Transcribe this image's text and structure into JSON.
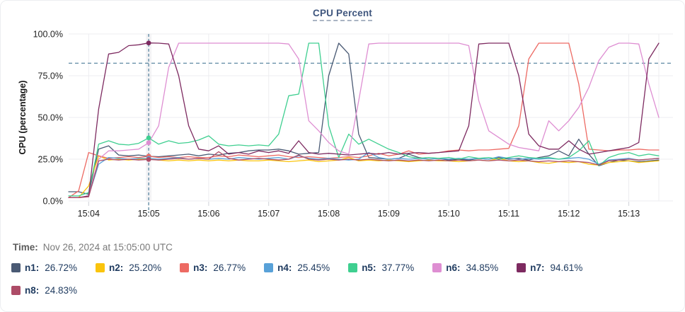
{
  "chart_data": {
    "type": "line",
    "title": "CPU Percent",
    "ylabel": "CPU (percentage)",
    "ylim": [
      0,
      100
    ],
    "grid": "on",
    "legend_position": "bottom",
    "x_start": "15:03:40",
    "x_end": "15:13:30",
    "x_step_seconds": 10,
    "y_ticks": [
      {
        "value": 0,
        "label": "0.0%"
      },
      {
        "value": 25,
        "label": "25.0%"
      },
      {
        "value": 50,
        "label": "50.0%"
      },
      {
        "value": 75,
        "label": "75.0%"
      },
      {
        "value": 100,
        "label": "100.0%"
      }
    ],
    "x_ticks": [
      {
        "t": 20,
        "label": "15:04"
      },
      {
        "t": 80,
        "label": "15:05"
      },
      {
        "t": 140,
        "label": "15:06"
      },
      {
        "t": 200,
        "label": "15:07"
      },
      {
        "t": 260,
        "label": "15:08"
      },
      {
        "t": 320,
        "label": "15:09"
      },
      {
        "t": 380,
        "label": "15:10"
      },
      {
        "t": 440,
        "label": "15:11"
      },
      {
        "t": 500,
        "label": "15:12"
      },
      {
        "t": 560,
        "label": "15:13"
      }
    ],
    "threshold_line": 82.5,
    "crosshair": {
      "t": 80,
      "time": "15:05:00",
      "values": {
        "n1": 26.72,
        "n2": 25.2,
        "n3": 26.77,
        "n4": 25.45,
        "n5": 37.77,
        "n6": 34.85,
        "n7": 94.61,
        "n8": 24.83
      }
    },
    "layout": {
      "grid_color": "#ededf0",
      "tick_color": "#cfd2d8",
      "axis_text_color": "#222222",
      "guide_color": "#4d7d99",
      "crosshair_band_color": "#f3f3f5"
    },
    "series": [
      {
        "name": "n1",
        "color": "#4a5a74",
        "values": [
          5.5,
          5.5,
          4,
          31,
          33,
          27.5,
          27,
          27.5,
          26.72,
          26.5,
          27,
          27.5,
          28,
          27,
          28,
          27.5,
          28.5,
          29,
          30,
          30.5,
          30.5,
          31,
          30,
          28,
          28.5,
          29,
          75,
          94.5,
          88,
          40,
          26,
          25.5,
          25,
          25.5,
          28,
          26,
          25,
          25.5,
          24.5,
          25,
          24.5,
          25.5,
          25,
          26,
          25,
          25.5,
          24.5,
          26,
          27,
          30,
          27,
          37,
          28,
          21,
          23,
          24.5,
          24,
          23.5,
          24,
          24.5
        ]
      },
      {
        "name": "n2",
        "color": "#fac40d",
        "values": [
          2,
          2,
          9,
          27,
          24.5,
          25,
          24.5,
          25,
          25.2,
          24.5,
          24,
          24.5,
          24,
          24.5,
          24,
          24.5,
          24,
          24.5,
          24,
          24,
          24.5,
          24,
          23.5,
          24,
          24.5,
          23.5,
          24,
          24.5,
          26,
          24,
          24.5,
          24,
          24.5,
          24,
          23.5,
          24,
          24.5,
          24,
          24,
          23.5,
          24,
          24.5,
          24,
          25.5,
          24,
          23.5,
          24,
          23,
          22.5,
          23.5,
          23,
          23.5,
          22,
          21.5,
          23,
          23.5,
          24,
          23,
          23.5,
          24
        ]
      },
      {
        "name": "n3",
        "color": "#ed6a63",
        "values": [
          2,
          6,
          29,
          27,
          25.5,
          26,
          26.5,
          26,
          26.77,
          26,
          26.5,
          26,
          26.5,
          26,
          26,
          27,
          26.5,
          27.5,
          27,
          26.5,
          27,
          27.5,
          26.5,
          26,
          26.5,
          26,
          25.5,
          26,
          26.5,
          26,
          27,
          28.5,
          27,
          28,
          30,
          28,
          28.5,
          29,
          30,
          30.5,
          30,
          30.5,
          30.5,
          31,
          31.5,
          45,
          85,
          94.5,
          94.5,
          94.5,
          94.5,
          70,
          31,
          30.5,
          30,
          30.5,
          30.5,
          31,
          30.5,
          30.5
        ]
      },
      {
        "name": "n4",
        "color": "#58a1d8",
        "values": [
          2,
          2,
          3,
          22,
          26,
          25.5,
          25,
          25.5,
          25.45,
          25,
          25.5,
          26,
          25,
          25.5,
          25,
          25.5,
          25,
          26,
          25.5,
          25,
          25.5,
          26,
          25,
          27,
          25.5,
          25,
          25.5,
          25,
          24.5,
          25,
          29,
          26,
          25,
          25.5,
          25,
          25.5,
          25,
          25.5,
          25,
          25.5,
          25,
          25.5,
          25,
          26.5,
          25.5,
          25,
          25.5,
          25,
          25.5,
          25,
          25.5,
          26,
          25,
          22,
          24.5,
          25,
          25.5,
          24.5,
          25,
          25.5
        ]
      },
      {
        "name": "n5",
        "color": "#3fcf90",
        "values": [
          3,
          3,
          5,
          34,
          36,
          34,
          33.5,
          34.5,
          37.77,
          34,
          36,
          34.5,
          35,
          36.5,
          39,
          34,
          33,
          33.5,
          33,
          33.5,
          33,
          40,
          63,
          64,
          94.5,
          94.5,
          45,
          26,
          40,
          34,
          37,
          34,
          31,
          29,
          26.5,
          25.5,
          26,
          25.5,
          26,
          25,
          26.5,
          25.5,
          26,
          25,
          26,
          27,
          26,
          25.5,
          26,
          25,
          26,
          30,
          36,
          21,
          26,
          28,
          29,
          27,
          28,
          27
        ]
      },
      {
        "name": "n6",
        "color": "#de8ed2",
        "values": [
          2,
          2,
          3,
          25,
          30,
          30,
          30.5,
          31,
          34.85,
          45,
          80,
          94.5,
          94.5,
          94.5,
          94.5,
          94.5,
          94.5,
          94.5,
          94.5,
          94.5,
          94.5,
          94.5,
          94,
          85,
          48,
          42,
          35,
          30,
          28,
          60,
          94,
          94.5,
          94.5,
          94.5,
          94.5,
          94.5,
          94.5,
          94.5,
          94.5,
          94.5,
          93,
          60,
          42,
          38,
          34,
          32,
          31,
          30,
          48,
          42,
          48,
          56,
          68,
          84,
          92,
          94.5,
          94.5,
          94,
          70,
          50
        ]
      },
      {
        "name": "n7",
        "color": "#7d2a60",
        "values": [
          2,
          2,
          3,
          55,
          88,
          89,
          93,
          93.5,
          94.61,
          94.5,
          94,
          75,
          45,
          31,
          30,
          33,
          28,
          29,
          28,
          30,
          29,
          30,
          28.5,
          36,
          29,
          28,
          28.5,
          28,
          27.5,
          28,
          28.5,
          28,
          29,
          28,
          28.5,
          29,
          28.5,
          29,
          29.5,
          30,
          45,
          94,
          94.5,
          94.5,
          94.5,
          75,
          40,
          33,
          31,
          31,
          36,
          31,
          28,
          29,
          30,
          31,
          32,
          35,
          85,
          94.5
        ]
      },
      {
        "name": "n8",
        "color": "#ad4c67",
        "values": [
          2,
          2,
          2.5,
          24,
          25,
          24.5,
          25,
          24.5,
          24.83,
          24.5,
          25,
          25.5,
          25,
          25.5,
          25,
          29.5,
          25.5,
          24.5,
          25,
          25.5,
          25,
          24.5,
          25,
          27.5,
          25,
          24.5,
          25,
          24.5,
          25,
          24.5,
          25,
          24.5,
          24,
          24.5,
          24,
          24.5,
          24,
          24.5,
          24,
          24.5,
          24,
          24.5,
          24,
          24.5,
          24,
          24.5,
          24,
          23.5,
          24,
          23.5,
          24,
          23.5,
          23,
          21.5,
          24,
          24.5,
          25,
          24.5,
          25,
          25.5
        ]
      }
    ]
  },
  "footer": {
    "time_label": "Time:",
    "time_value": "Nov 26, 2024 at 15:05:00 UTC",
    "legend_rows": [
      [
        {
          "name": "n1",
          "value": "26.72%"
        },
        {
          "name": "n2",
          "value": "25.20%"
        },
        {
          "name": "n3",
          "value": "26.77%"
        },
        {
          "name": "n4",
          "value": "25.45%"
        },
        {
          "name": "n5",
          "value": "37.77%"
        },
        {
          "name": "n6",
          "value": "34.85%"
        },
        {
          "name": "n7",
          "value": "94.61%"
        }
      ],
      [
        {
          "name": "n8",
          "value": "24.83%"
        }
      ]
    ]
  }
}
